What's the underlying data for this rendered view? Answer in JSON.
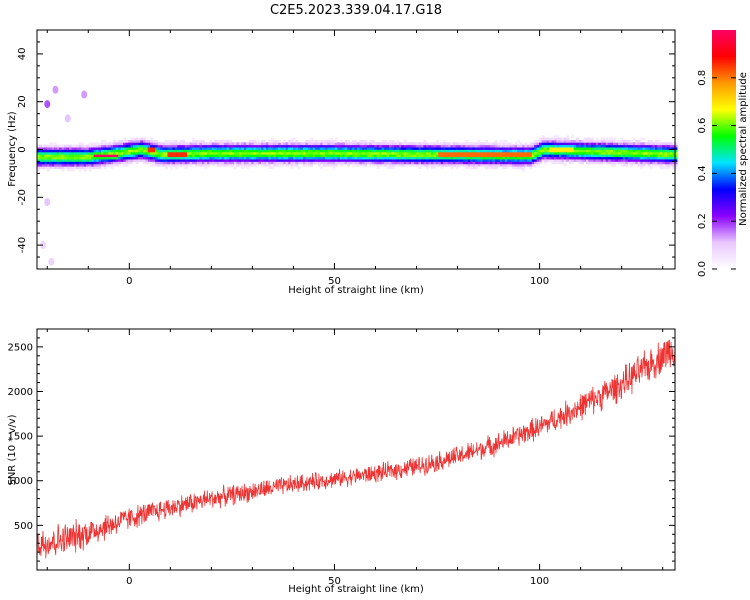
{
  "figure": {
    "title": "C2E5.2023.339.04.17.G18"
  },
  "chart_data": [
    {
      "type": "heatmap",
      "name": "spectrogram",
      "xlabel": "Height of straight line (km)",
      "ylabel": "Frequency (Hz)",
      "xlim": [
        -22.5,
        133
      ],
      "ylim": [
        -50,
        50
      ],
      "xticks": [
        0,
        50,
        100
      ],
      "yticks": [
        -40,
        -20,
        0,
        20,
        40
      ],
      "colorbar": {
        "label": "Normalized spectral amplitude",
        "range": [
          0,
          1
        ],
        "ticks": [
          "0.0",
          "0.2",
          "0.4",
          "0.6",
          "0.8"
        ],
        "colors": [
          "#ffffff",
          "#e9c6ff",
          "#8a00ff",
          "#0000ff",
          "#00e5ff",
          "#00ff00",
          "#ffff00",
          "#ff9900",
          "#ff0000",
          "#ff0066"
        ]
      },
      "band_center_hz": [
        [
          -22,
          -3
        ],
        [
          -10,
          -3
        ],
        [
          -5,
          -2
        ],
        [
          3,
          0
        ],
        [
          8,
          -2
        ],
        [
          20,
          -1.5
        ],
        [
          50,
          -1.5
        ],
        [
          98,
          -2.5
        ],
        [
          101,
          0
        ],
        [
          133,
          -2
        ]
      ],
      "band_halfwidth_hz": 3,
      "peak_segments": [
        {
          "x": [
            -9,
            -3
          ],
          "freq_hz": -2.5,
          "amplitude": 1.0
        },
        {
          "x": [
            4,
            6
          ],
          "freq_hz": 0,
          "amplitude": 1.0
        },
        {
          "x": [
            9,
            14
          ],
          "freq_hz": -2,
          "amplitude": 1.0
        },
        {
          "x": [
            75,
            98
          ],
          "freq_hz": -2,
          "amplitude": 0.95
        },
        {
          "x": [
            102,
            108
          ],
          "freq_hz": 0,
          "amplitude": 0.8
        }
      ],
      "noise_blobs": [
        {
          "x": -20,
          "freq_hz": 19,
          "amplitude": 0.2
        },
        {
          "x": -18,
          "freq_hz": 25,
          "amplitude": 0.15
        },
        {
          "x": -11,
          "freq_hz": 23,
          "amplitude": 0.15
        },
        {
          "x": -15,
          "freq_hz": 13,
          "amplitude": 0.12
        },
        {
          "x": -20,
          "freq_hz": -22,
          "amplitude": 0.12
        },
        {
          "x": -21,
          "freq_hz": -40,
          "amplitude": 0.1
        },
        {
          "x": -19,
          "freq_hz": -47,
          "amplitude": 0.1
        }
      ]
    },
    {
      "type": "line",
      "name": "snr",
      "xlabel": "Height of straight line (km)",
      "ylabel": "SNR (10 * v/v)",
      "xlim": [
        -22.5,
        133
      ],
      "ylim": [
        0,
        2700
      ],
      "xticks": [
        0,
        50,
        100
      ],
      "yticks": [
        500,
        1000,
        1500,
        2000,
        2500
      ],
      "color": "#ee3333",
      "trend": {
        "x": [
          -22,
          -15,
          -10,
          0,
          10,
          20,
          30,
          40,
          50,
          60,
          70,
          80,
          90,
          100,
          110,
          120,
          130,
          133
        ],
        "y": [
          300,
          350,
          420,
          580,
          700,
          800,
          880,
          960,
          1020,
          1080,
          1160,
          1270,
          1420,
          1600,
          1830,
          2080,
          2400,
          2500
        ]
      },
      "noise_amplitude": [
        [
          -22,
          240
        ],
        [
          -10,
          200
        ],
        [
          0,
          150
        ],
        [
          50,
          110
        ],
        [
          100,
          150
        ],
        [
          133,
          240
        ]
      ]
    }
  ]
}
